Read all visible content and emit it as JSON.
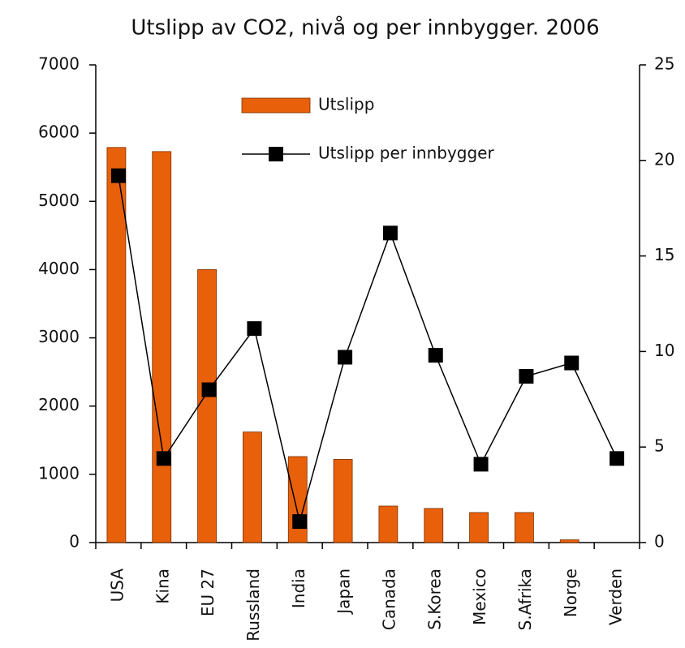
{
  "chart_data": {
    "type": "bar",
    "title": "Utslipp av CO2, nivå og per innbygger. 2006",
    "categories": [
      "USA",
      "Kina",
      "EU 27",
      "Russland",
      "India",
      "Japan",
      "Canada",
      "S.Korea",
      "Mexico",
      "S.Afrika",
      "Norge",
      "Verden"
    ],
    "series": [
      {
        "name": "Utslipp",
        "type": "bar",
        "color": "#e8600a",
        "values": [
          5790,
          5730,
          4000,
          1620,
          1260,
          1220,
          535,
          500,
          440,
          440,
          40,
          null
        ]
      },
      {
        "name": "Utslipp per innbygger",
        "type": "line",
        "axis": "y2",
        "color": "#000000",
        "values": [
          19.2,
          4.4,
          8.0,
          11.2,
          1.1,
          9.7,
          16.2,
          9.8,
          4.1,
          8.7,
          9.4,
          4.4
        ]
      }
    ],
    "ylim": [
      0,
      7000
    ],
    "yticks": [
      0,
      1000,
      2000,
      3000,
      4000,
      5000,
      6000,
      7000
    ],
    "y2lim": [
      0,
      25
    ],
    "y2ticks": [
      0,
      5,
      10,
      15,
      20,
      25
    ],
    "legend": "top-right"
  }
}
